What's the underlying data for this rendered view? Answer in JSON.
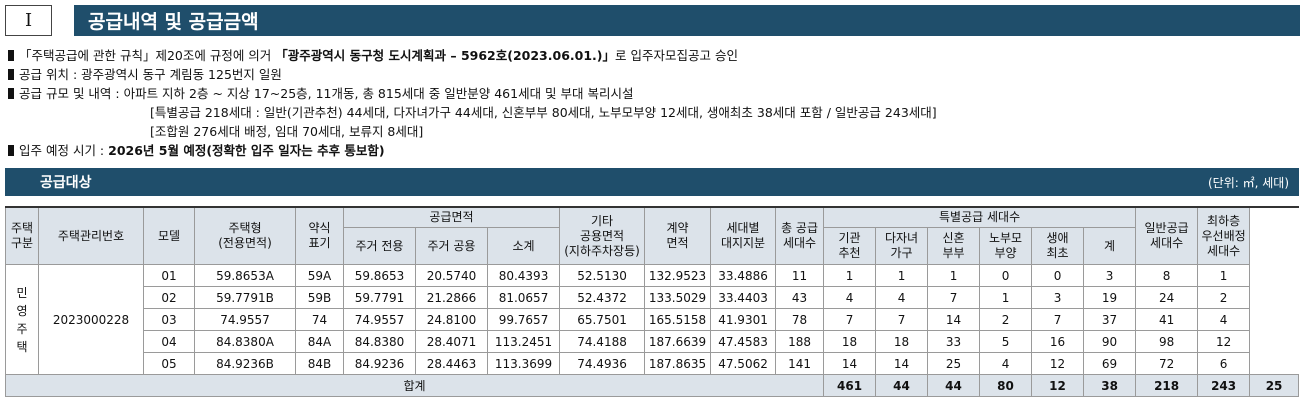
{
  "header": {
    "number": "I",
    "title": "공급내역 및 공급금액"
  },
  "info": {
    "line1_a": "「주택공급에 관한 규칙」제20조에 규정에 의거",
    "line1_b": "「광주광역시 동구청 도시계획과 – 5962호(2023.06.01.)」",
    "line1_c": "로 입주자모집공고 승인",
    "line2": "공급 위치 : 광주광역시 동구 계림동 125번지 일원",
    "line3": "공급 규모 및 내역 : 아파트 지하 2층 ~ 지상 17~25층, 11개동, 총 815세대 중 일반분양 461세대 및 부대 복리시설",
    "line4": "[특별공급 218세대 : 일반(기관추천) 44세대, 다자녀가구 44세대, 신혼부부 80세대, 노부모부양 12세대, 생애최초 38세대 포함 / 일반공급 243세대]",
    "line5": "[조합원 276세대 배정, 임대 70세대, 보류지 8세대]",
    "line6_a": "입주 예정 시기 :",
    "line6_b": "2026년 5월 예정(정확한 입주 일자는 추후 통보함)"
  },
  "section": {
    "title": "공급대상",
    "unit": "(단위: ㎡, 세대)"
  },
  "table": {
    "headers": {
      "type": "주택\n구분",
      "code": "주택관리번호",
      "model": "모델",
      "housetype": "주택형\n(전용면적)",
      "abbr": "약식\n표기",
      "area_group": "공급면적",
      "area_private": "주거 전용",
      "area_common": "주거 공용",
      "area_sub": "소계",
      "other": "기타\n공용면적\n(지하주차장등)",
      "contract": "계약\n면적",
      "land": "세대별\n대지지분",
      "total": "총 공급\n세대수",
      "special_group": "특별공급 세대수",
      "sp_inst": "기관\n추천",
      "sp_multi": "다자녀\n가구",
      "sp_newly": "신혼\n부부",
      "sp_parent": "노부모\n부양",
      "sp_first": "생애\n최초",
      "sp_sum": "계",
      "general": "일반공급\n세대수",
      "lowest": "최하층\n우선배정\n세대수"
    },
    "type_label": "민\n영\n주\n택",
    "code_value": "2023000228",
    "rows": [
      {
        "model": "01",
        "housetype": "59.8653A",
        "abbr": "59A",
        "priv": "59.8653",
        "comm": "20.5740",
        "sub": "80.4393",
        "other": "52.5130",
        "contract": "132.9523",
        "land": "33.4886",
        "total": "11",
        "inst": "1",
        "multi": "1",
        "newly": "1",
        "parent": "0",
        "first": "0",
        "spsum": "3",
        "general": "8",
        "lowest": "1"
      },
      {
        "model": "02",
        "housetype": "59.7791B",
        "abbr": "59B",
        "priv": "59.7791",
        "comm": "21.2866",
        "sub": "81.0657",
        "other": "52.4372",
        "contract": "133.5029",
        "land": "33.4403",
        "total": "43",
        "inst": "4",
        "multi": "4",
        "newly": "7",
        "parent": "1",
        "first": "3",
        "spsum": "19",
        "general": "24",
        "lowest": "2"
      },
      {
        "model": "03",
        "housetype": "74.9557",
        "abbr": "74",
        "priv": "74.9557",
        "comm": "24.8100",
        "sub": "99.7657",
        "other": "65.7501",
        "contract": "165.5158",
        "land": "41.9301",
        "total": "78",
        "inst": "7",
        "multi": "7",
        "newly": "14",
        "parent": "2",
        "first": "7",
        "spsum": "37",
        "general": "41",
        "lowest": "4"
      },
      {
        "model": "04",
        "housetype": "84.8380A",
        "abbr": "84A",
        "priv": "84.8380",
        "comm": "28.4071",
        "sub": "113.2451",
        "other": "74.4188",
        "contract": "187.6639",
        "land": "47.4583",
        "total": "188",
        "inst": "18",
        "multi": "18",
        "newly": "33",
        "parent": "5",
        "first": "16",
        "spsum": "90",
        "general": "98",
        "lowest": "12"
      },
      {
        "model": "05",
        "housetype": "84.9236B",
        "abbr": "84B",
        "priv": "84.9236",
        "comm": "28.4463",
        "sub": "113.3699",
        "other": "74.4936",
        "contract": "187.8635",
        "land": "47.5062",
        "total": "141",
        "inst": "14",
        "multi": "14",
        "newly": "25",
        "parent": "4",
        "first": "12",
        "spsum": "69",
        "general": "72",
        "lowest": "6"
      }
    ],
    "sum": {
      "label": "합계",
      "total": "461",
      "inst": "44",
      "multi": "44",
      "newly": "80",
      "parent": "12",
      "first": "38",
      "spsum": "218",
      "general": "243",
      "lowest": "25"
    }
  }
}
